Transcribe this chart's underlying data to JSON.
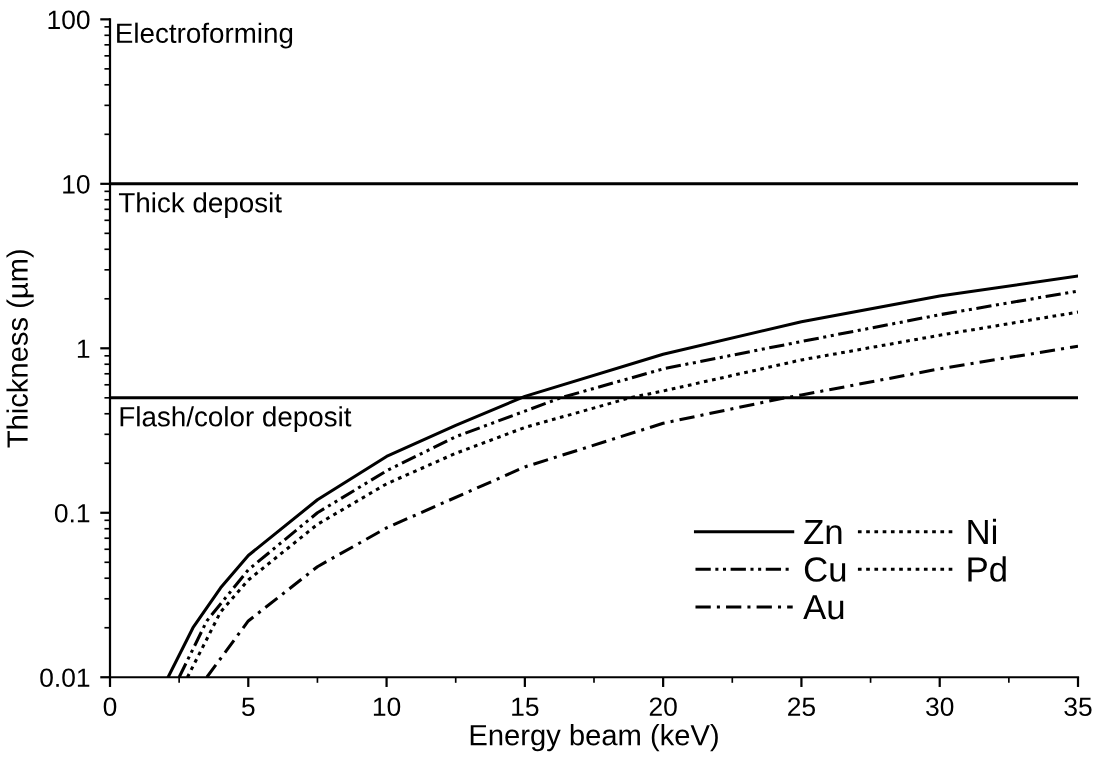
{
  "chart_data": {
    "type": "line",
    "xlabel": "Energy beam (keV)",
    "ylabel": "Thickness (µm)",
    "log": "y",
    "xlim": [
      0,
      35
    ],
    "ylim": [
      0.01,
      100
    ],
    "xticks": [
      0,
      5,
      10,
      15,
      20,
      25,
      30,
      35
    ],
    "yticks": [
      0.01,
      0.1,
      1,
      10,
      100
    ],
    "grid": false,
    "legend": "bottom right",
    "marker": "none",
    "series": [
      {
        "name": "Zn",
        "color": "#000000",
        "line_style": "solid",
        "x": [
          2.1,
          3,
          4,
          5,
          7.5,
          10,
          12.5,
          15,
          20,
          25,
          30,
          35
        ],
        "values": [
          0.01,
          0.02,
          0.035,
          0.055,
          0.12,
          0.22,
          0.34,
          0.51,
          0.92,
          1.45,
          2.08,
          2.75
        ]
      },
      {
        "name": "Cu",
        "color": "#000000",
        "line_style": "dashdotdot",
        "x": [
          2.5,
          3.5,
          5,
          7.5,
          10,
          12.5,
          16.3,
          20,
          25,
          30,
          35
        ],
        "values": [
          0.01,
          0.022,
          0.045,
          0.1,
          0.18,
          0.29,
          0.5,
          0.75,
          1.1,
          1.6,
          2.23
        ]
      },
      {
        "name": "Au",
        "color": "#000000",
        "line_style": "dashdot",
        "x": [
          3.5,
          5,
          7.5,
          10,
          15,
          20,
          24.4,
          25,
          30,
          35
        ],
        "values": [
          0.01,
          0.022,
          0.047,
          0.081,
          0.19,
          0.35,
          0.5,
          0.52,
          0.75,
          1.03
        ]
      },
      {
        "name": "Ni",
        "color": "#000000",
        "line_style": "dotted",
        "x": [
          2.8,
          4,
          5,
          7.5,
          10,
          12.5,
          15,
          18.8,
          20,
          25,
          30,
          35
        ],
        "values": [
          0.01,
          0.025,
          0.039,
          0.085,
          0.15,
          0.23,
          0.33,
          0.5,
          0.55,
          0.85,
          1.2,
          1.66
        ]
      },
      {
        "name": "Pd",
        "color": "#000000",
        "line_style": "dotted"
      }
    ],
    "ref_lines": [
      {
        "axis": "y",
        "value": 10,
        "label": "Thick deposit",
        "color": "#000000"
      },
      {
        "axis": "y",
        "value": 0.5,
        "label": "Flash/color deposit",
        "color": "#000000"
      }
    ],
    "annotations": [
      "Electroforming"
    ]
  }
}
